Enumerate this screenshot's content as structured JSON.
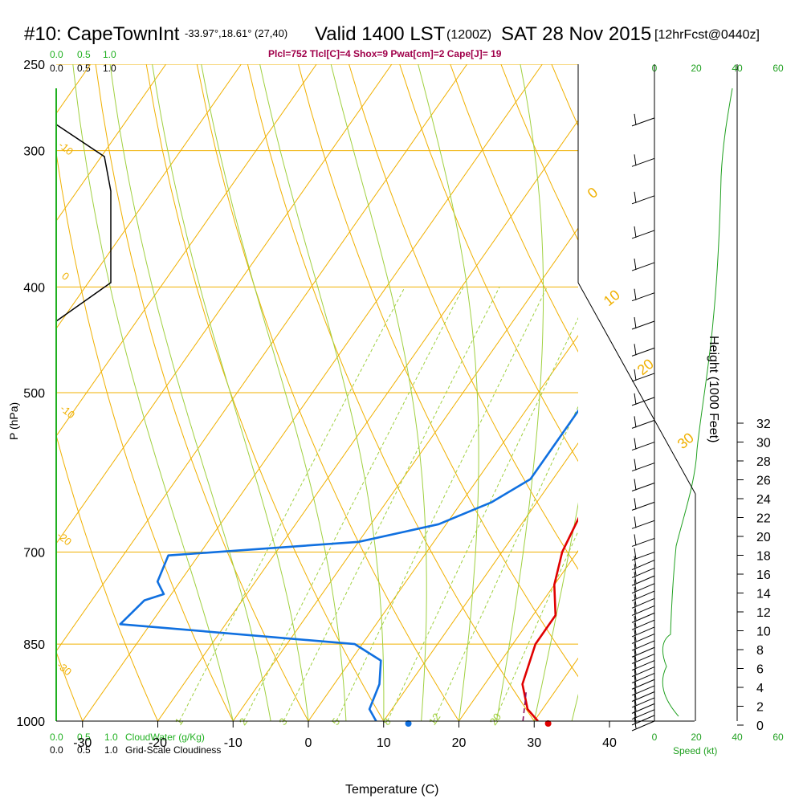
{
  "header": {
    "station": "#10: CapeTownInt",
    "coords": "-33.97°,18.61° (27,40)",
    "valid": "Valid 1400 LST",
    "zulu": "(1200Z)",
    "date": "SAT 28 Nov 2015",
    "forecast": "[12hrFcst@0440z]",
    "indices": "Plcl=752 Tlcl[C]=4 Shox=9 Pwat[cm]=2 Cape[J]= 19"
  },
  "colors": {
    "temperature": "#e00000",
    "dewpoint": "#1070e0",
    "isotherm": "#f0b000",
    "mixing_ratio": "#a0d040",
    "wind_speed": "#20a020",
    "cloud": "#000000",
    "indices": "#a0004a",
    "green_label": "#20b020"
  },
  "chart_data": {
    "type": "line",
    "title": "#10: CapeTownInt",
    "xlabel": "Temperature (C)",
    "ylabel": "P (hPa)",
    "y2label": "Height (1000 Feet)",
    "x_ticks": [
      "-30",
      "-20",
      "-10",
      "0",
      "10",
      "20",
      "30",
      "40"
    ],
    "y_ticks": [
      "250",
      "300",
      "400",
      "500",
      "700",
      "850",
      "1000"
    ],
    "height_ticks": [
      "0",
      "2",
      "4",
      "6",
      "8",
      "10",
      "12",
      "14",
      "16",
      "18",
      "20",
      "22",
      "24",
      "26",
      "28",
      "30",
      "32"
    ],
    "isotherm_labels": [
      "-10",
      "0",
      "10",
      "20",
      "30"
    ],
    "left_isotherm_labels": [
      "-10",
      "0",
      "-10",
      "-20",
      "-30"
    ],
    "mixing_ratio_labels": [
      "1",
      "2",
      "3",
      "5",
      "8",
      "12",
      "20"
    ],
    "speed_ticks": [
      "0",
      "20",
      "40",
      "60"
    ],
    "speed_label": "Speed (kt)",
    "cloud_scale": [
      "0.0",
      "0.5",
      "1.0"
    ],
    "cloud_water_label": "CloudWater (g/Kg)",
    "cloudiness_label": "Grid-Scale Cloudiness",
    "series": [
      {
        "name": "Temperature",
        "points": [
          [
            30.5,
            1000
          ],
          [
            28,
            975
          ],
          [
            25,
            925
          ],
          [
            23,
            850
          ],
          [
            23,
            800
          ],
          [
            20,
            750
          ],
          [
            18,
            700
          ],
          [
            17,
            650
          ],
          [
            15,
            600
          ],
          [
            12,
            550
          ],
          [
            9,
            500
          ],
          [
            7,
            450
          ],
          [
            5,
            400
          ],
          [
            4,
            350
          ],
          [
            2,
            300
          ],
          [
            -1,
            265
          ]
        ]
      },
      {
        "name": "Dewpoint",
        "points": [
          [
            9,
            1000
          ],
          [
            7,
            975
          ],
          [
            6,
            925
          ],
          [
            4,
            880
          ],
          [
            -1,
            850
          ],
          [
            -34,
            815
          ],
          [
            -33,
            775
          ],
          [
            -31,
            765
          ],
          [
            -33,
            745
          ],
          [
            -34,
            705
          ],
          [
            -10,
            685
          ],
          [
            -1,
            660
          ],
          [
            4,
            630
          ],
          [
            7,
            600
          ],
          [
            7,
            550
          ],
          [
            7,
            500
          ],
          [
            8,
            450
          ],
          [
            8,
            420
          ],
          [
            7,
            400
          ],
          [
            5,
            360
          ],
          [
            4,
            340
          ],
          [
            2,
            320
          ],
          [
            -1,
            300
          ],
          [
            -5,
            265
          ]
        ]
      }
    ],
    "surface_temperature": 31,
    "surface_dewpoint": 13.5
  }
}
